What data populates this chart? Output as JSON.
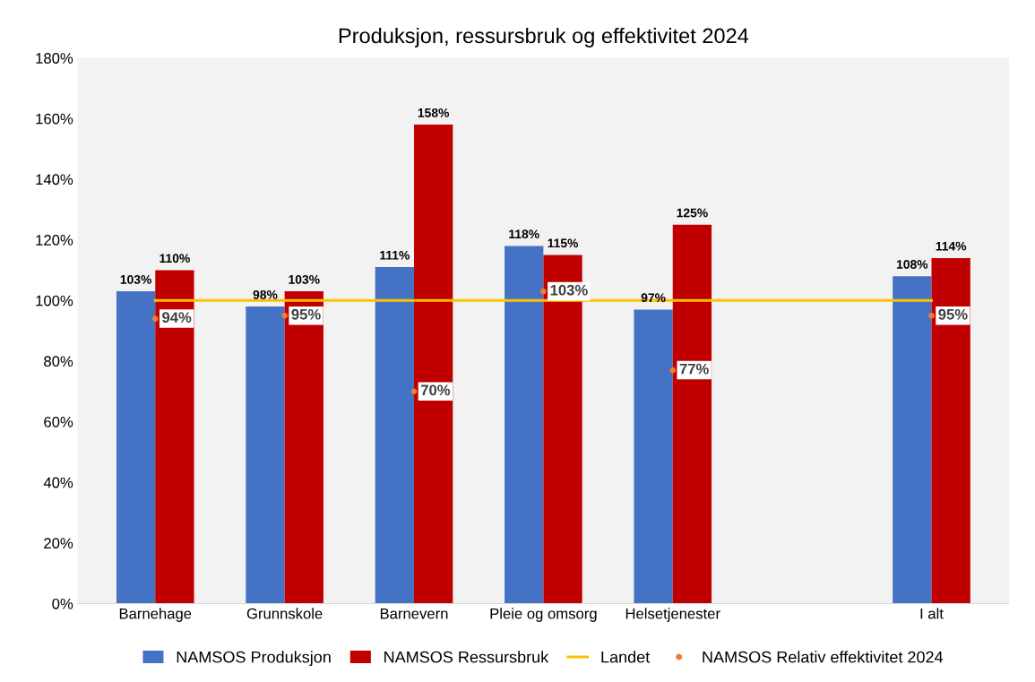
{
  "chart_data": {
    "type": "bar",
    "title": "Produksjon, ressursbruk og effektivitet 2024",
    "categories": [
      "Barnehage",
      "Grunnskole",
      "Barnevern",
      "Pleie og omsorg",
      "Helsetjenester",
      null,
      "I alt"
    ],
    "series": [
      {
        "name": "NAMSOS Produksjon",
        "color": "#4472c4",
        "values": [
          103,
          98,
          111,
          118,
          97,
          null,
          108
        ],
        "value_labels": [
          "103%",
          "98%",
          "111%",
          "118%",
          "97%",
          null,
          "108%"
        ]
      },
      {
        "name": "NAMSOS Ressursbruk",
        "color": "#c00000",
        "values": [
          110,
          103,
          158,
          115,
          125,
          null,
          114
        ],
        "value_labels": [
          "110%",
          "103%",
          "158%",
          "115%",
          "125%",
          null,
          "114%"
        ]
      },
      {
        "name": "Landet",
        "type": "line",
        "color": "#ffc000",
        "values": [
          100,
          100,
          100,
          100,
          100,
          100,
          100
        ]
      },
      {
        "name": "NAMSOS Relativ effektivitet 2024",
        "type": "scatter",
        "marker": "circle",
        "color": "#ed7d31",
        "values": [
          94,
          95,
          70,
          103,
          77,
          null,
          95
        ],
        "value_labels": [
          "94%",
          "95%",
          "70%",
          "103%",
          "77%",
          null,
          "95%"
        ]
      }
    ],
    "ylim": [
      0,
      180
    ],
    "yticks": [
      {
        "value": 0,
        "label": "0%"
      },
      {
        "value": 20,
        "label": "20%"
      },
      {
        "value": 40,
        "label": "40%"
      },
      {
        "value": 60,
        "label": "60%"
      },
      {
        "value": 80,
        "label": "80%"
      },
      {
        "value": 100,
        "label": "100%"
      },
      {
        "value": 120,
        "label": "120%"
      },
      {
        "value": 140,
        "label": "140%"
      },
      {
        "value": 160,
        "label": "160%"
      },
      {
        "value": 180,
        "label": "180%"
      }
    ],
    "grid": false,
    "legend": "bottom"
  }
}
